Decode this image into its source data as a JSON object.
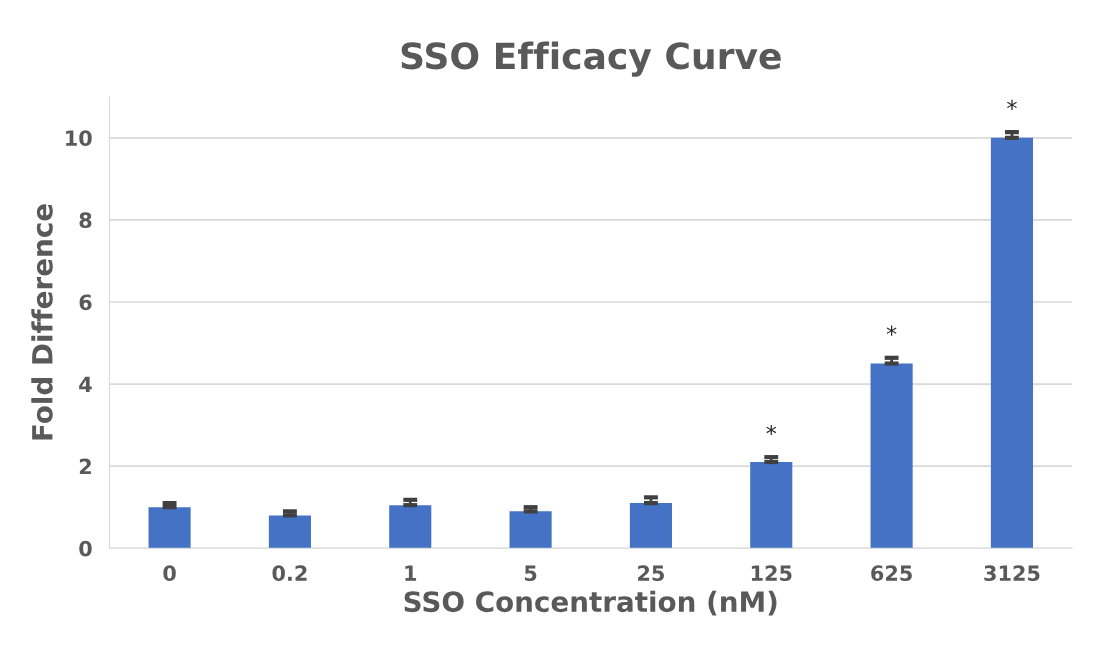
{
  "chart_data": {
    "type": "bar",
    "title": "SSO Efficacy Curve",
    "xlabel": "SSO Concentration (nM)",
    "ylabel": "Fold Difference",
    "categories": [
      "0",
      "0.2",
      "1",
      "5",
      "25",
      "125",
      "625",
      "3125"
    ],
    "values": [
      1.0,
      0.8,
      1.05,
      0.9,
      1.1,
      2.1,
      4.5,
      10.0
    ],
    "errors": [
      [
        1.0,
        1.1
      ],
      [
        0.8,
        0.9
      ],
      [
        1.05,
        1.18
      ],
      [
        0.9,
        1.0
      ],
      [
        1.1,
        1.24
      ],
      [
        2.1,
        2.22
      ],
      [
        4.5,
        4.64
      ],
      [
        10.0,
        10.14
      ]
    ],
    "color": "#4472c4",
    "ylim": [
      0,
      11
    ],
    "yticks": [
      0,
      2,
      4,
      6,
      8,
      10
    ],
    "grid": "y",
    "annotations": [
      {
        "text": "*",
        "x": "125",
        "y": 2.22
      },
      {
        "text": "*",
        "x": "625",
        "y": 4.64
      },
      {
        "text": "*",
        "x": "3125",
        "y": 10.14
      }
    ]
  }
}
